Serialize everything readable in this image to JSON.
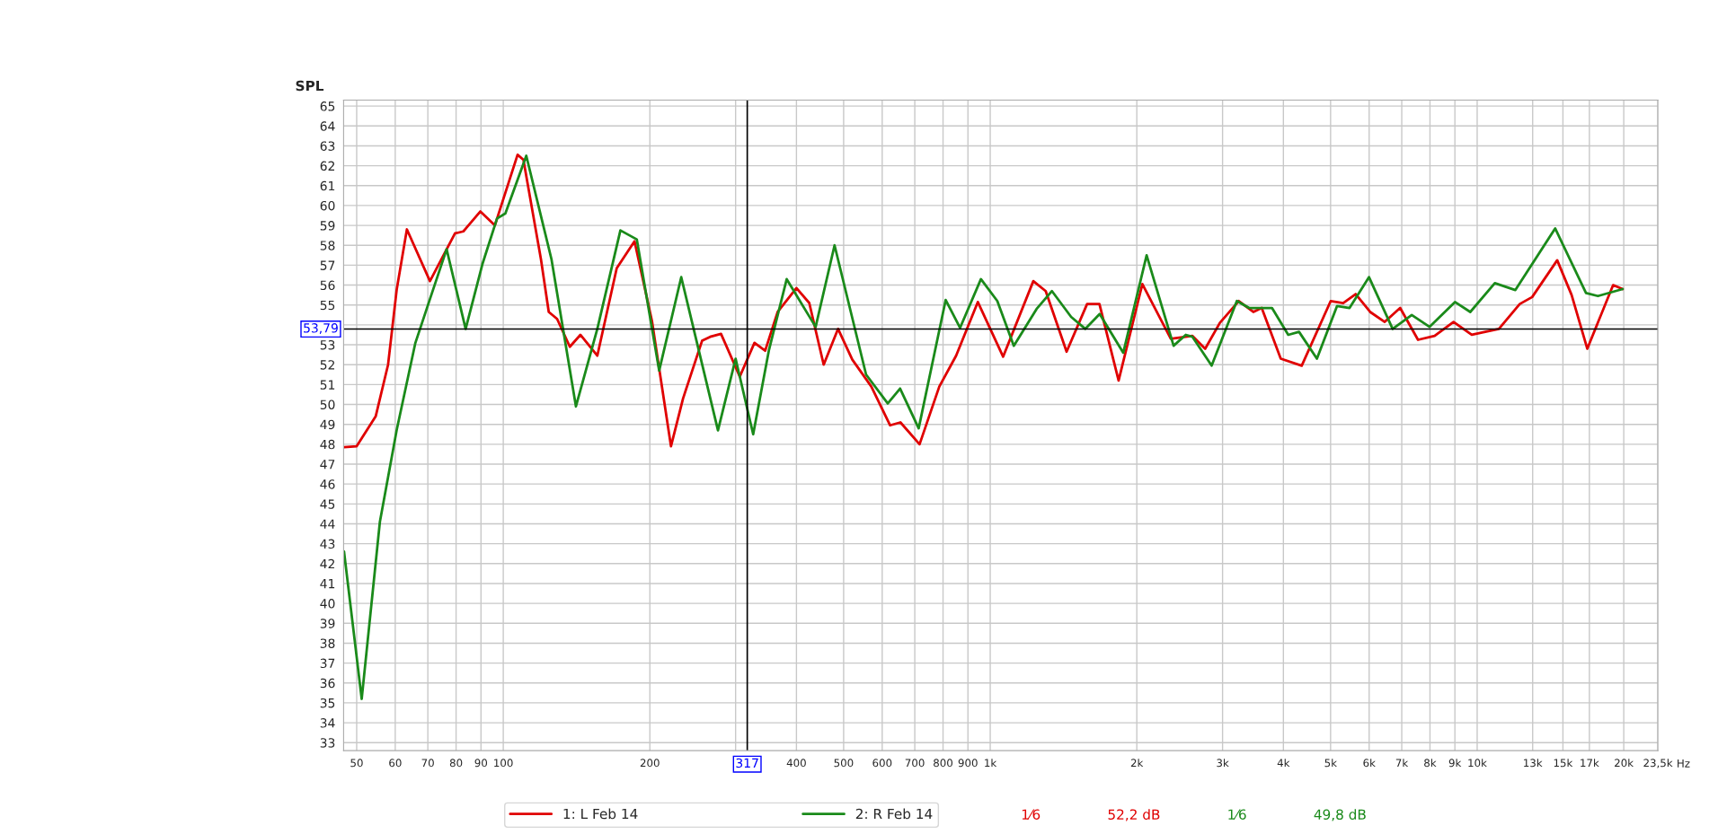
{
  "chart_data": {
    "type": "line",
    "ylabel": "SPL",
    "xlim": [
      47,
      23500
    ],
    "ylim": [
      32.6,
      65.3
    ],
    "log": "x",
    "xticks": [
      50,
      60,
      70,
      80,
      90,
      100,
      200,
      {
        "value": 300,
        "label": null
      },
      400,
      500,
      600,
      700,
      800,
      900,
      {
        "value": 1000,
        "label": "1k"
      },
      {
        "value": 2000,
        "label": "2k"
      },
      {
        "value": 3000,
        "label": "3k"
      },
      {
        "value": 4000,
        "label": "4k"
      },
      {
        "value": 5000,
        "label": "5k"
      },
      {
        "value": 6000,
        "label": "6k"
      },
      {
        "value": 7000,
        "label": "7k"
      },
      {
        "value": 8000,
        "label": "8k"
      },
      {
        "value": 9000,
        "label": "9k"
      },
      {
        "value": 10000,
        "label": "10k"
      },
      {
        "value": 13000,
        "label": "13k"
      },
      {
        "value": 15000,
        "label": "15k"
      },
      {
        "value": 17000,
        "label": "17k"
      },
      {
        "value": 20000,
        "label": "20k"
      },
      {
        "value": 23500,
        "label": "23,5k"
      }
    ],
    "xlabel": "Hz",
    "yticks": [
      33,
      34,
      35,
      36,
      37,
      38,
      39,
      40,
      41,
      42,
      43,
      44,
      45,
      46,
      47,
      48,
      49,
      50,
      51,
      52,
      53,
      {
        "value": 54,
        "label": null
      },
      55,
      56,
      57,
      58,
      59,
      60,
      61,
      62,
      63,
      64,
      65
    ],
    "grid": true,
    "legend": "bottom",
    "line_style": "solid",
    "marker": "none",
    "ref_lines": [
      {
        "axis": "x",
        "value": 317,
        "label": "317",
        "color": "#000000"
      },
      {
        "axis": "y",
        "value": 53.79,
        "label": "53,79",
        "color": "#000000"
      }
    ],
    "annotations": [
      "1⁄6",
      "52,2 dB",
      "1⁄6",
      "49,8 dB"
    ],
    "series": [
      {
        "name": "1: L Feb 14",
        "color": "#e00000",
        "x": [
          47.1,
          50,
          54.7,
          58,
          60.4,
          63.4,
          70.7,
          79.6,
          82.8,
          89.7,
          96.1,
          107,
          110,
          119.5,
          124,
          129,
          137,
          144,
          156,
          171,
          186,
          202,
          221,
          234,
          256,
          266,
          280,
          306,
          328,
          345,
          366,
          400,
          425,
          455,
          487,
          521,
          570,
          623,
          654,
          716,
          786,
          851,
          943,
          1063,
          1226,
          1300,
          1435,
          1581,
          1676,
          1835,
          2053,
          2349,
          2600,
          2763,
          2962,
          3239,
          3470,
          3610,
          3950,
          4362,
          5003,
          5307,
          5630,
          6029,
          6459,
          6947,
          7560,
          8177,
          8942,
          9746,
          11080,
          12230,
          12970,
          14600,
          15630,
          16830,
          19020,
          19890
        ],
        "values": [
          47.85,
          47.9,
          49.4,
          52.0,
          55.75,
          58.8,
          56.2,
          58.6,
          58.7,
          59.7,
          59.0,
          62.55,
          62.3,
          57.3,
          54.65,
          54.3,
          52.9,
          53.5,
          52.45,
          56.85,
          58.2,
          54.2,
          47.9,
          50.3,
          53.2,
          53.4,
          53.55,
          51.4,
          53.1,
          52.7,
          54.65,
          55.85,
          55.1,
          52.0,
          53.8,
          52.25,
          50.9,
          48.95,
          49.1,
          48.0,
          50.9,
          52.45,
          55.15,
          52.4,
          56.2,
          55.7,
          52.65,
          55.05,
          55.05,
          51.2,
          56.05,
          53.3,
          53.45,
          52.8,
          54.1,
          55.2,
          54.65,
          54.85,
          52.3,
          51.95,
          55.2,
          55.1,
          55.55,
          54.65,
          54.15,
          54.85,
          53.25,
          53.45,
          54.15,
          53.5,
          53.8,
          55.05,
          55.4,
          57.25,
          55.5,
          52.8,
          56.0,
          55.8
        ]
      },
      {
        "name": "2: R Feb 14",
        "color": "#1a8a1a",
        "x": [
          47.1,
          51.2,
          55.8,
          60.4,
          66.0,
          70.7,
          76.5,
          83.7,
          90.6,
          97.1,
          101,
          111.5,
          125.6,
          141,
          156,
          174,
          188,
          209,
          232,
          276,
          300,
          326,
          351,
          382,
          438,
          479,
          556,
          616,
          653,
          713,
          810,
          867,
          957,
          1034,
          1118,
          1245,
          1339,
          1466,
          1568,
          1678,
          1876,
          2095,
          2380,
          2521,
          2602,
          2849,
          3210,
          3401,
          3790,
          4093,
          4307,
          4687,
          5156,
          5469,
          5995,
          6705,
          7339,
          7986,
          9003,
          9679,
          10870,
          11980,
          14460,
          16730,
          17700,
          19890
        ],
        "values": [
          42.6,
          35.2,
          44.1,
          48.7,
          53.1,
          55.3,
          57.8,
          53.8,
          57.05,
          59.35,
          59.6,
          62.5,
          57.3,
          49.9,
          53.8,
          58.75,
          58.3,
          51.7,
          56.4,
          48.7,
          52.3,
          48.5,
          52.7,
          56.3,
          53.9,
          58.0,
          51.5,
          50.05,
          50.8,
          48.8,
          55.25,
          53.85,
          56.3,
          55.2,
          52.95,
          54.8,
          55.7,
          54.4,
          53.8,
          54.55,
          52.6,
          57.5,
          52.95,
          53.5,
          53.4,
          51.95,
          55.2,
          54.85,
          54.85,
          53.5,
          53.65,
          52.3,
          54.95,
          54.85,
          56.4,
          53.8,
          54.5,
          53.9,
          55.15,
          54.65,
          56.1,
          55.75,
          58.85,
          55.6,
          55.45,
          55.8
        ]
      }
    ]
  }
}
